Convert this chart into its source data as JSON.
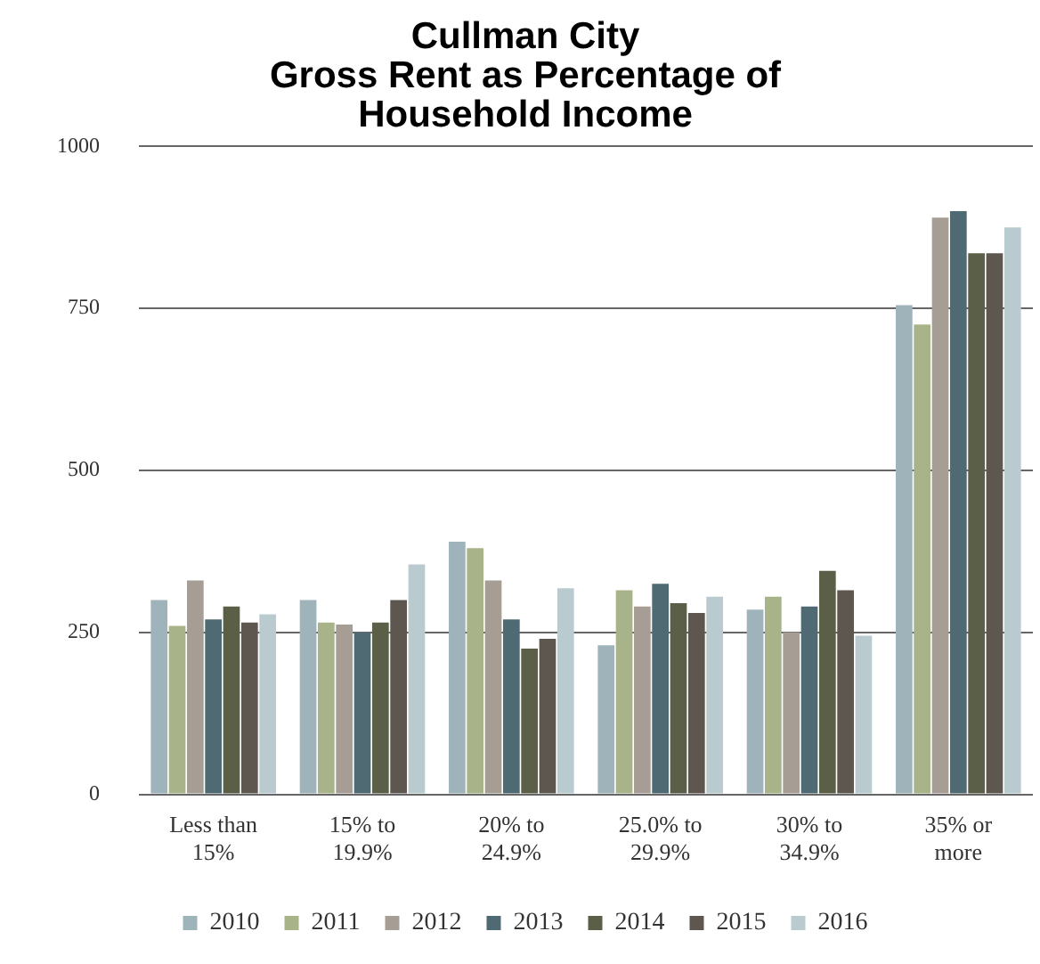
{
  "chart_data": {
    "type": "bar",
    "title": "Cullman City\nGross Rent as Percentage of\nHousehold Income",
    "categories": [
      "Less than 15%",
      "15% to 19.9%",
      "20% to 24.9%",
      "25.0% to 29.9%",
      "30% to 34.9%",
      "35% or more"
    ],
    "series": [
      {
        "name": "2010",
        "color": "#9fb3bb",
        "values": [
          300,
          300,
          390,
          230,
          285,
          755
        ]
      },
      {
        "name": "2011",
        "color": "#a9b38a",
        "values": [
          260,
          265,
          380,
          315,
          305,
          725
        ]
      },
      {
        "name": "2012",
        "color": "#a69e95",
        "values": [
          330,
          262,
          330,
          290,
          250,
          890
        ]
      },
      {
        "name": "2013",
        "color": "#506a73",
        "values": [
          270,
          250,
          270,
          325,
          290,
          900
        ]
      },
      {
        "name": "2014",
        "color": "#5b5f48",
        "values": [
          290,
          265,
          225,
          295,
          345,
          835
        ]
      },
      {
        "name": "2015",
        "color": "#5e5750",
        "values": [
          265,
          300,
          240,
          280,
          315,
          835
        ]
      },
      {
        "name": "2016",
        "color": "#b9cbcf",
        "values": [
          278,
          355,
          318,
          305,
          245,
          875
        ]
      }
    ],
    "ylim": [
      0,
      1000
    ],
    "yticks": [
      0,
      250,
      500,
      750,
      1000
    ],
    "grid": "y",
    "legend": "bottom"
  }
}
